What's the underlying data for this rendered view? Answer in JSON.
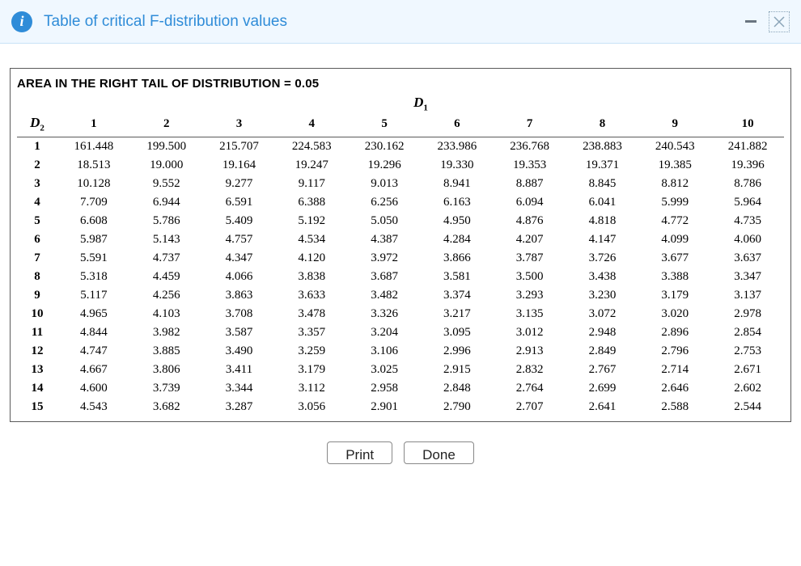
{
  "dialog": {
    "title": "Table of critical F-distribution values",
    "info_glyph": "i"
  },
  "table": {
    "caption": "AREA IN THE RIGHT TAIL OF DISTRIBUTION = 0.05",
    "d1_html": "D<sub>1</sub>",
    "d2_html": "D<sub>2</sub>",
    "columns": [
      "1",
      "2",
      "3",
      "4",
      "5",
      "6",
      "7",
      "8",
      "9",
      "10"
    ],
    "row_labels": [
      "1",
      "2",
      "3",
      "4",
      "5",
      "6",
      "7",
      "8",
      "9",
      "10",
      "11",
      "12",
      "13",
      "14",
      "15"
    ],
    "rows": [
      [
        "161.448",
        "199.500",
        "215.707",
        "224.583",
        "230.162",
        "233.986",
        "236.768",
        "238.883",
        "240.543",
        "241.882"
      ],
      [
        "18.513",
        "19.000",
        "19.164",
        "19.247",
        "19.296",
        "19.330",
        "19.353",
        "19.371",
        "19.385",
        "19.396"
      ],
      [
        "10.128",
        "9.552",
        "9.277",
        "9.117",
        "9.013",
        "8.941",
        "8.887",
        "8.845",
        "8.812",
        "8.786"
      ],
      [
        "7.709",
        "6.944",
        "6.591",
        "6.388",
        "6.256",
        "6.163",
        "6.094",
        "6.041",
        "5.999",
        "5.964"
      ],
      [
        "6.608",
        "5.786",
        "5.409",
        "5.192",
        "5.050",
        "4.950",
        "4.876",
        "4.818",
        "4.772",
        "4.735"
      ],
      [
        "5.987",
        "5.143",
        "4.757",
        "4.534",
        "4.387",
        "4.284",
        "4.207",
        "4.147",
        "4.099",
        "4.060"
      ],
      [
        "5.591",
        "4.737",
        "4.347",
        "4.120",
        "3.972",
        "3.866",
        "3.787",
        "3.726",
        "3.677",
        "3.637"
      ],
      [
        "5.318",
        "4.459",
        "4.066",
        "3.838",
        "3.687",
        "3.581",
        "3.500",
        "3.438",
        "3.388",
        "3.347"
      ],
      [
        "5.117",
        "4.256",
        "3.863",
        "3.633",
        "3.482",
        "3.374",
        "3.293",
        "3.230",
        "3.179",
        "3.137"
      ],
      [
        "4.965",
        "4.103",
        "3.708",
        "3.478",
        "3.326",
        "3.217",
        "3.135",
        "3.072",
        "3.020",
        "2.978"
      ],
      [
        "4.844",
        "3.982",
        "3.587",
        "3.357",
        "3.204",
        "3.095",
        "3.012",
        "2.948",
        "2.896",
        "2.854"
      ],
      [
        "4.747",
        "3.885",
        "3.490",
        "3.259",
        "3.106",
        "2.996",
        "2.913",
        "2.849",
        "2.796",
        "2.753"
      ],
      [
        "4.667",
        "3.806",
        "3.411",
        "3.179",
        "3.025",
        "2.915",
        "2.832",
        "2.767",
        "2.714",
        "2.671"
      ],
      [
        "4.600",
        "3.739",
        "3.344",
        "3.112",
        "2.958",
        "2.848",
        "2.764",
        "2.699",
        "2.646",
        "2.602"
      ],
      [
        "4.543",
        "3.682",
        "3.287",
        "3.056",
        "2.901",
        "2.790",
        "2.707",
        "2.641",
        "2.588",
        "2.544"
      ]
    ]
  },
  "buttons": {
    "print": "Print",
    "done": "Done"
  },
  "style": {
    "header_bg": "#f0f8ff",
    "accent": "#2f8cd8",
    "border": "#5a5a5a",
    "text": "#000000"
  }
}
